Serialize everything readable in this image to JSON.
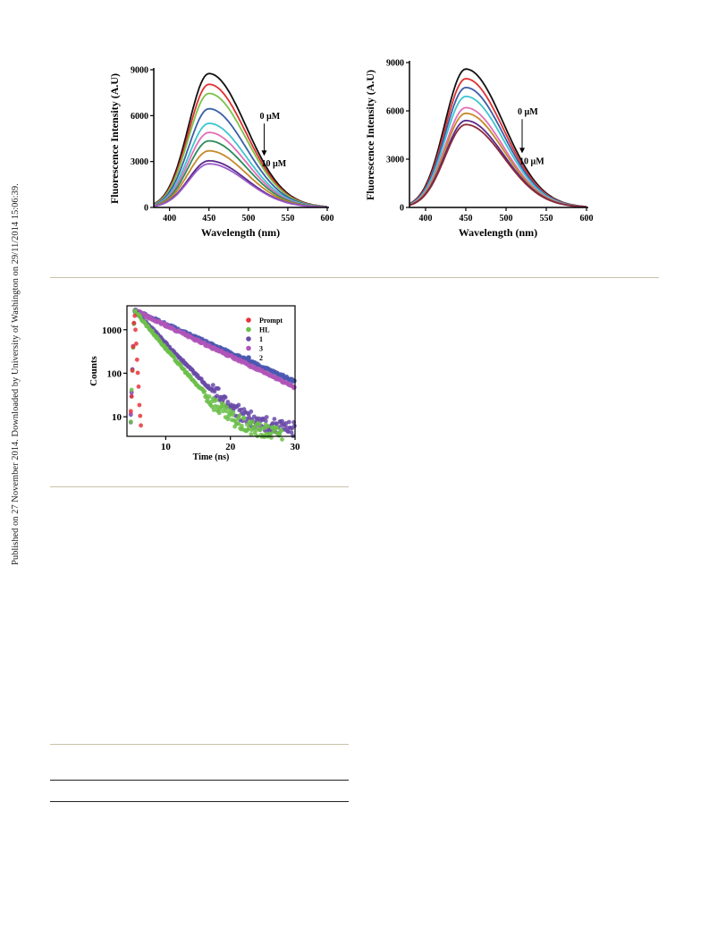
{
  "side_note": "Published on 27 November 2014. Downloaded by University of Washington on 29/11/2014 15:06:39.",
  "chart_data": [
    {
      "type": "line",
      "ylabel": "Fluorescence Intensity (A.U)",
      "xlabel": "Wavelength (nm)",
      "xlim": [
        380,
        600
      ],
      "ylim": [
        0,
        9000
      ],
      "xticks": [
        400,
        450,
        500,
        550,
        600
      ],
      "yticks": [
        0,
        3000,
        6000,
        9000
      ],
      "peak_x": 450,
      "annotation_top": "0 µM",
      "annotation_bottom": "10 µM",
      "series": [
        {
          "peak": 8750,
          "color": "#111111"
        },
        {
          "peak": 8050,
          "color": "#e03030"
        },
        {
          "peak": 7450,
          "color": "#7cc24a"
        },
        {
          "peak": 6450,
          "color": "#3a5ea8"
        },
        {
          "peak": 5500,
          "color": "#3ec4d0"
        },
        {
          "peak": 4900,
          "color": "#e070b8"
        },
        {
          "peak": 4350,
          "color": "#2e8a5a"
        },
        {
          "peak": 3700,
          "color": "#c48a2a"
        },
        {
          "peak": 3050,
          "color": "#5a2a8a"
        },
        {
          "peak": 2850,
          "color": "#9a5ac8"
        }
      ]
    },
    {
      "type": "line",
      "ylabel": "Fluorescence Intensity (A.U)",
      "xlabel": "Wavelength (nm)",
      "xlim": [
        380,
        600
      ],
      "ylim": [
        0,
        9000
      ],
      "xticks": [
        400,
        450,
        500,
        550,
        600
      ],
      "yticks": [
        0,
        3000,
        6000,
        9000
      ],
      "peak_x": 450,
      "annotation_top": "0 µM",
      "annotation_bottom": "10 µM",
      "series": [
        {
          "peak": 8600,
          "color": "#111111"
        },
        {
          "peak": 8000,
          "color": "#e03030"
        },
        {
          "peak": 7450,
          "color": "#3a5ea8"
        },
        {
          "peak": 6900,
          "color": "#3ec4d0"
        },
        {
          "peak": 6200,
          "color": "#e070b8"
        },
        {
          "peak": 5850,
          "color": "#c48a2a"
        },
        {
          "peak": 5400,
          "color": "#5a2a8a"
        },
        {
          "peak": 5150,
          "color": "#8a2a3a"
        }
      ]
    },
    {
      "type": "scatter",
      "ylabel": "Counts",
      "xlabel": "Time (ns)",
      "xlim": [
        4,
        30
      ],
      "ylim_log10": [
        0.55,
        3.55
      ],
      "xticks": [
        10,
        20,
        30
      ],
      "yticks": [
        10,
        100,
        1000
      ],
      "legend_position": "top-right",
      "series": [
        {
          "name": "Prompt",
          "color": "#e8343a",
          "tau": 0.16,
          "floor": 0
        },
        {
          "name": "HL",
          "color": "#6cc04a",
          "tau": 2.4,
          "floor": 4
        },
        {
          "name": "1",
          "color": "#6a4aa8",
          "tau": 2.75,
          "floor": 5
        },
        {
          "name": "3",
          "color": "#b055b8",
          "tau": 6.1,
          "floor": 0
        },
        {
          "name": "2",
          "color": "#4a58b0",
          "tau": 6.6,
          "floor": 0
        }
      ]
    }
  ]
}
